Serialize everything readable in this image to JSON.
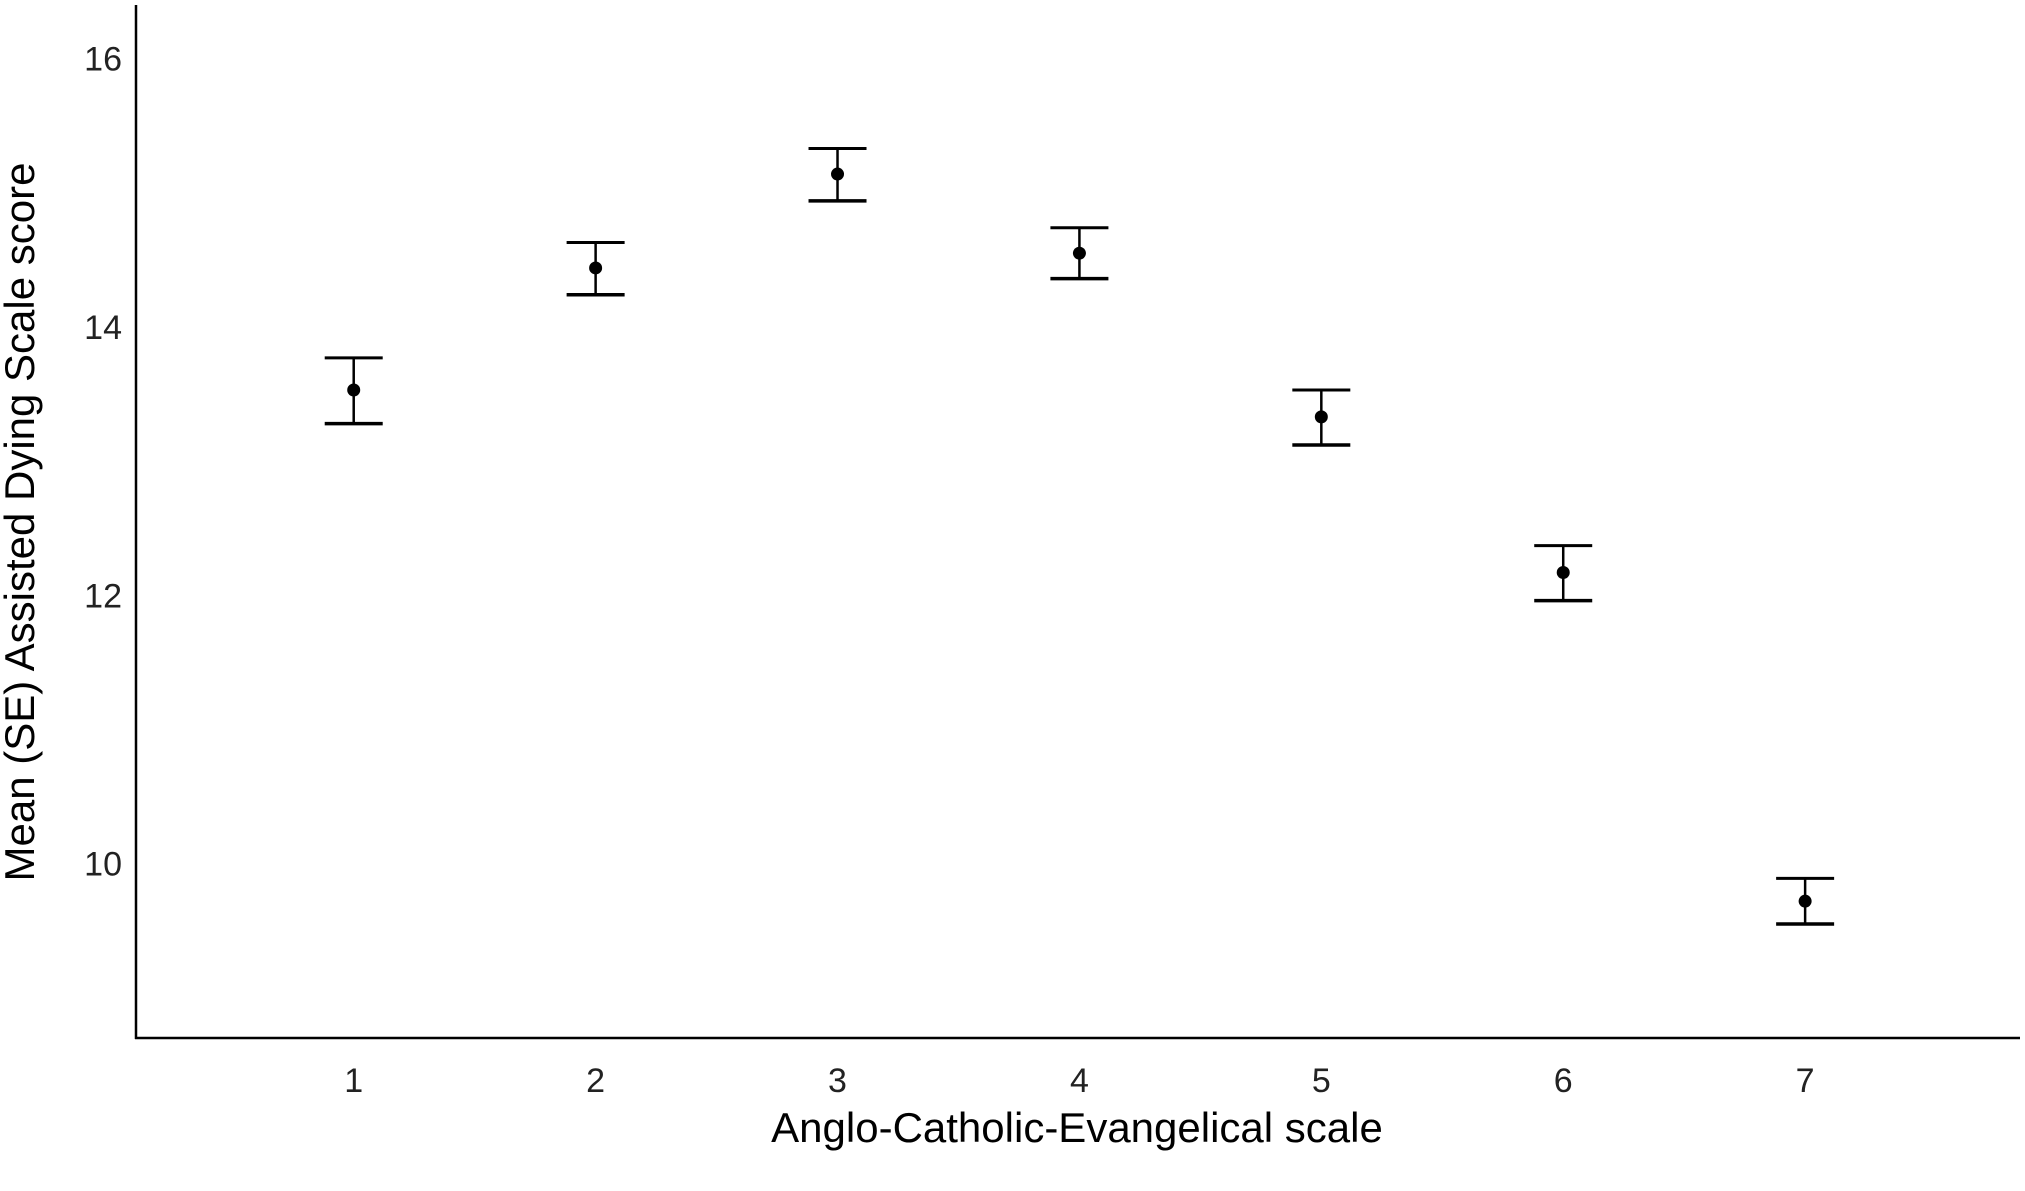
{
  "chart_data": {
    "type": "scatter",
    "title": "",
    "xlabel": "Anglo-Catholic-Evangelical scale",
    "ylabel": "Mean (SE) Assisted Dying Scale score",
    "x": [
      1,
      2,
      3,
      4,
      5,
      6,
      7
    ],
    "xticks": [
      "1",
      "2",
      "3",
      "4",
      "5",
      "6",
      "7"
    ],
    "yticks": [
      "10",
      "12",
      "14",
      "16"
    ],
    "ylim": [
      8.7,
      16.4
    ],
    "xlim": [
      0.1,
      7.88
    ],
    "grid": false,
    "legend": "none",
    "series": [
      {
        "mean": [
          13.53,
          14.44,
          15.14,
          14.55,
          13.33,
          12.17,
          9.72
        ],
        "lower": [
          13.28,
          14.24,
          14.94,
          14.36,
          13.12,
          11.96,
          9.55
        ],
        "upper": [
          13.77,
          14.63,
          15.33,
          14.74,
          13.53,
          12.37,
          9.89
        ]
      }
    ],
    "colors": {
      "marker": "#000000",
      "axis": "#000000"
    }
  }
}
